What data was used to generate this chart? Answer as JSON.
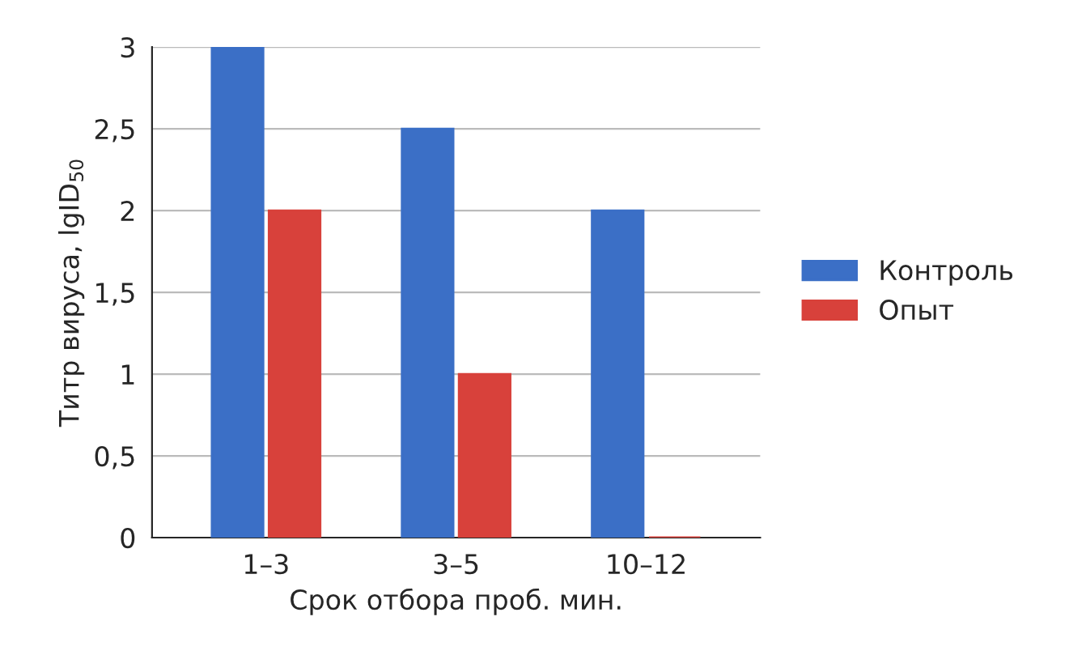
{
  "chart_data": {
    "type": "bar",
    "xlabel": "Срок отбора проб. мин.",
    "ylabel": "Титр вируса, lgID$_{50}$",
    "categories": [
      "1–3",
      "3–5",
      "10–12"
    ],
    "series": [
      {
        "name": "Контроль",
        "color": "#3b6fc6",
        "values": [
          3,
          2.5,
          2
        ]
      },
      {
        "name": "Опыт",
        "color": "#d8413b",
        "values": [
          2,
          1,
          0
        ]
      }
    ],
    "ylim": [
      0,
      3
    ],
    "yticks": [
      0,
      {
        "value": 0.5,
        "label": "0,5"
      },
      1,
      {
        "value": 1.5,
        "label": "1,5"
      },
      2,
      {
        "value": 2.5,
        "label": "2,5"
      },
      3
    ],
    "grid": "y",
    "legend": "right"
  }
}
